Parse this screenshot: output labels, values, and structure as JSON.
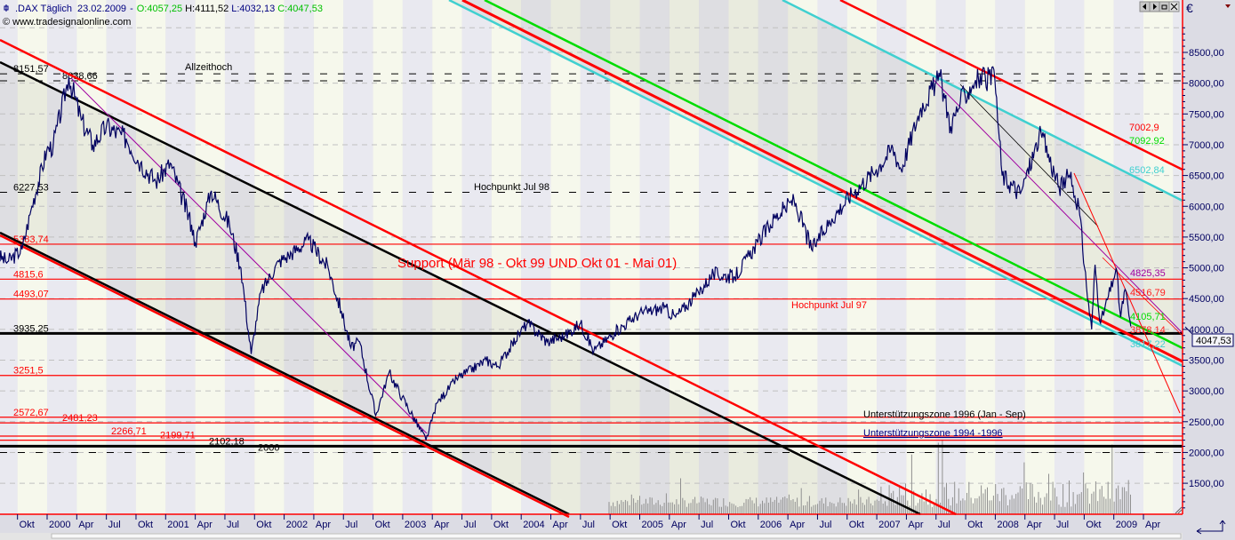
{
  "header": {
    "symbol": ".DAX Täglich",
    "date": "23.02.2009",
    "sep": "-",
    "open": "O:4057,25",
    "high": "H:4111,52",
    "low": "L:4032,13",
    "close": "C:4047,53",
    "copyright": "© www.tradesignalonline.com"
  },
  "toolbar": {
    "buttons": [
      "arrow-left-icon",
      "arrow-right-icon",
      "restore-icon",
      "close-icon"
    ]
  },
  "currency": "€",
  "last_price_tag": "4047,53",
  "colors": {
    "price": "#000060",
    "red": "#ff0000",
    "green": "#00dd00",
    "cyan": "#40d0d0",
    "purple": "#a000a0",
    "axis": "#000060",
    "up": "#00c000"
  },
  "chart_data": {
    "type": "line",
    "title": ".DAX Täglich",
    "ylabel": "€",
    "ylim": [
      1000,
      9000
    ],
    "yticks": [
      "1500,00",
      "2000,00",
      "2500,00",
      "3000,00",
      "3500,00",
      "4000,00",
      "4500,00",
      "5000,00",
      "5500,00",
      "6000,00",
      "6500,00",
      "7000,00",
      "7500,00",
      "8000,00",
      "8500,00"
    ],
    "xticks": [
      "Okt",
      "2000",
      "Apr",
      "Jul",
      "Okt",
      "2001",
      "Apr",
      "Jul",
      "Okt",
      "2002",
      "Apr",
      "Jul",
      "Okt",
      "2003",
      "Apr",
      "Jul",
      "Okt",
      "2004",
      "Apr",
      "Jul",
      "Okt",
      "2005",
      "Apr",
      "Jul",
      "Okt",
      "2006",
      "Apr",
      "Jul",
      "Okt",
      "2007",
      "Apr",
      "Jul",
      "Okt",
      "2008",
      "Apr",
      "Jul",
      "Okt",
      "2009",
      "Apr"
    ],
    "grid": true,
    "series": [
      {
        "points": [
          [
            "1999-08-01",
            5200
          ],
          [
            "1999-09-01",
            5100
          ],
          [
            "1999-10-15",
            5300
          ],
          [
            "1999-11-15",
            6000
          ],
          [
            "1999-12-30",
            6900
          ],
          [
            "2000-01-20",
            7000
          ],
          [
            "2000-03-07",
            8100
          ],
          [
            "2000-04-15",
            7400
          ],
          [
            "2000-05-20",
            7000
          ],
          [
            "2000-07-01",
            7300
          ],
          [
            "2000-09-01",
            7100
          ],
          [
            "2000-10-15",
            6700
          ],
          [
            "2000-12-01",
            6400
          ],
          [
            "2001-01-15",
            6700
          ],
          [
            "2001-03-20",
            5700
          ],
          [
            "2001-04-01",
            5400
          ],
          [
            "2001-05-20",
            6250
          ],
          [
            "2001-07-15",
            5700
          ],
          [
            "2001-08-20",
            5000
          ],
          [
            "2001-09-21",
            3600
          ],
          [
            "2001-10-20",
            4600
          ],
          [
            "2001-12-15",
            5100
          ],
          [
            "2002-01-15",
            5200
          ],
          [
            "2002-03-15",
            5450
          ],
          [
            "2002-05-15",
            5000
          ],
          [
            "2002-06-25",
            4300
          ],
          [
            "2002-07-24",
            3700
          ],
          [
            "2002-08-20",
            3800
          ],
          [
            "2002-10-09",
            2600
          ],
          [
            "2002-11-20",
            3300
          ],
          [
            "2002-12-30",
            2900
          ],
          [
            "2003-03-12",
            2200
          ],
          [
            "2003-04-15",
            2800
          ],
          [
            "2003-06-15",
            3200
          ],
          [
            "2003-09-15",
            3500
          ],
          [
            "2003-10-20",
            3400
          ],
          [
            "2003-12-30",
            3965
          ],
          [
            "2004-01-20",
            4100
          ],
          [
            "2004-03-20",
            3800
          ],
          [
            "2004-05-15",
            3900
          ],
          [
            "2004-07-01",
            4100
          ],
          [
            "2004-08-12",
            3650
          ],
          [
            "2004-10-15",
            3950
          ],
          [
            "2004-12-30",
            4256
          ],
          [
            "2005-03-15",
            4350
          ],
          [
            "2005-04-20",
            4200
          ],
          [
            "2005-06-30",
            4600
          ],
          [
            "2005-08-15",
            4900
          ],
          [
            "2005-10-20",
            4850
          ],
          [
            "2005-12-30",
            5408
          ],
          [
            "2006-02-20",
            5800
          ],
          [
            "2006-04-20",
            6100
          ],
          [
            "2006-06-13",
            5300
          ],
          [
            "2006-08-15",
            5800
          ],
          [
            "2006-10-15",
            6200
          ],
          [
            "2006-12-30",
            6600
          ],
          [
            "2007-02-20",
            6950
          ],
          [
            "2007-03-15",
            6600
          ],
          [
            "2007-05-15",
            7600
          ],
          [
            "2007-07-13",
            8100
          ],
          [
            "2007-08-16",
            7300
          ],
          [
            "2007-09-15",
            7700
          ],
          [
            "2007-11-01",
            8050
          ],
          [
            "2007-12-30",
            8067
          ],
          [
            "2008-01-22",
            6500
          ],
          [
            "2008-03-17",
            6200
          ],
          [
            "2008-05-20",
            7200
          ],
          [
            "2008-07-15",
            6300
          ],
          [
            "2008-08-15",
            6500
          ],
          [
            "2008-09-15",
            6000
          ],
          [
            "2008-10-08",
            4700
          ],
          [
            "2008-10-24",
            4000
          ],
          [
            "2008-11-04",
            5050
          ],
          [
            "2008-11-21",
            4100
          ],
          [
            "2008-12-30",
            4810
          ],
          [
            "2009-01-08",
            5000
          ],
          [
            "2009-01-22",
            4200
          ],
          [
            "2009-02-05",
            4650
          ],
          [
            "2009-02-23",
            4047
          ]
        ]
      }
    ]
  },
  "levels": [
    {
      "label": "8151,57",
      "value": 8151.57,
      "style": "black-dashed"
    },
    {
      "label": "8038,66",
      "value": 8038.66,
      "style": "black-dashed"
    },
    {
      "label": "6227,53",
      "value": 6227.53,
      "style": "black-dashed"
    },
    {
      "label": "5383,74",
      "value": 5383.74,
      "style": "red"
    },
    {
      "label": "4815,6",
      "value": 4815.6,
      "style": "red"
    },
    {
      "label": "4493,07",
      "value": 4493.07,
      "style": "red"
    },
    {
      "label": "3935,25",
      "value": 3935.25,
      "style": "black-thick"
    },
    {
      "label": "3251,5",
      "value": 3251.5,
      "style": "red"
    },
    {
      "label": "2572,67",
      "value": 2572.67,
      "style": "red"
    },
    {
      "label": "2481,23",
      "value": 2481.23,
      "style": "red"
    },
    {
      "label": "2266,71",
      "value": 2266.71,
      "style": "red"
    },
    {
      "label": "2199,71",
      "value": 2199.71,
      "style": "red"
    },
    {
      "label": "2102,18",
      "value": 2102.18,
      "style": "black-thick"
    },
    {
      "label": "2000",
      "value": 2000,
      "style": "black-dashed"
    }
  ],
  "annotations": {
    "allzeithoch": "Allzeithoch",
    "hochpunkt_jul98": "Hochpunkt Jul 98",
    "support": "Support (Mär 98 - Okt 99 UND Okt 01 - Mai 01)",
    "hochpunkt_jul97": "Hochpunkt Jul 97",
    "zone1996": "Unterstützungszone 1996 (Jan - Sep)",
    "zone1994": "Unterstützungszone 1994 -1996"
  },
  "line_labels": {
    "red_upper": "7002,9",
    "green_upper": "7092,92",
    "cyan_upper": "6502,84",
    "purple": "4825,35",
    "red_mid": "4516,79",
    "green": "4105,71",
    "red_low": "3878,14",
    "cyan_low": "3817,22"
  }
}
